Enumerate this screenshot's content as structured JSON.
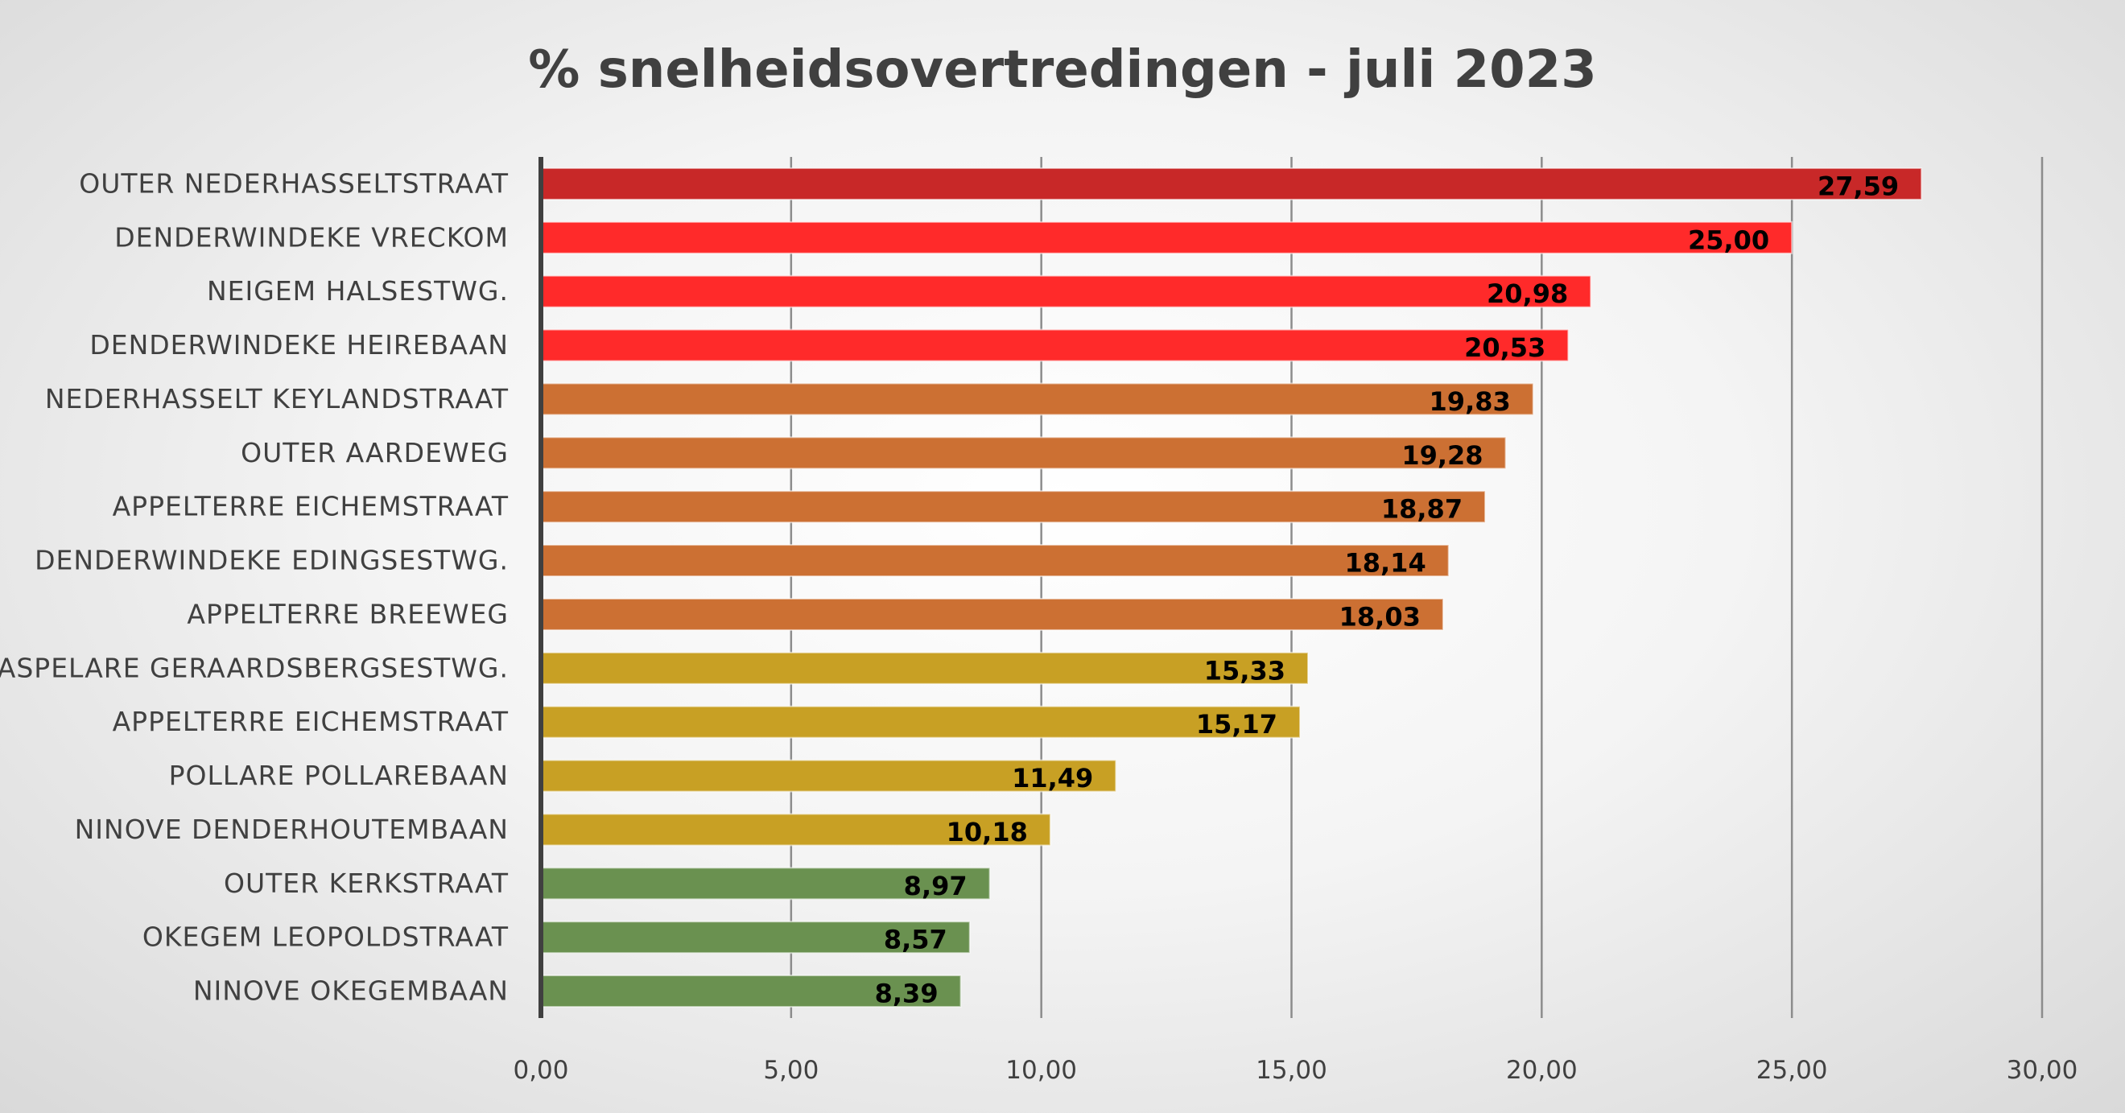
{
  "chart_data": {
    "type": "bar",
    "orientation": "horizontal",
    "title": "% snelheidsovertredingen - juli 2023",
    "xlabel": "",
    "ylabel": "",
    "xlim": [
      0,
      30
    ],
    "x_ticks": [
      "0,00",
      "5,00",
      "10,00",
      "15,00",
      "20,00",
      "25,00",
      "30,00"
    ],
    "x_tick_values": [
      0,
      5,
      10,
      15,
      20,
      25,
      30
    ],
    "grid": true,
    "legend": "none",
    "categories": [
      "OUTER NEDERHASSELTSTRAAT",
      "DENDERWINDEKE VRECKOM",
      "NEIGEM HALSESTWG.",
      "DENDERWINDEKE HEIREBAAN",
      "NEDERHASSELT KEYLANDSTRAAT",
      "OUTER AARDEWEG",
      "APPELTERRE EICHEMSTRAAT",
      "DENDERWINDEKE EDINGSESTWG.",
      "APPELTERRE BREEWEG",
      "ASPELARE GERAARDSBERGSESTWG.",
      "APPELTERRE EICHEMSTRAAT",
      "POLLARE POLLAREBAAN",
      "NINOVE DENDERHOUTEMBAAN",
      "OUTER KERKSTRAAT",
      "OKEGEM LEOPOLDSTRAAT",
      "NINOVE OKEGEMBAAN"
    ],
    "values": [
      27.59,
      25.0,
      20.98,
      20.53,
      19.83,
      19.28,
      18.87,
      18.14,
      18.03,
      15.33,
      15.17,
      11.49,
      10.18,
      8.97,
      8.57,
      8.39
    ],
    "value_labels": [
      "27,59",
      "25,00",
      "20,98",
      "20,53",
      "19,83",
      "19,28",
      "18,87",
      "18,14",
      "18,03",
      "15,33",
      "15,17",
      "11,49",
      "10,18",
      "8,97",
      "8,57",
      "8,39"
    ],
    "bar_colors": [
      "#c82828",
      "#ff2a2a",
      "#ff2a2a",
      "#ff2a2a",
      "#cc7033",
      "#cc7033",
      "#cc7033",
      "#cc7033",
      "#cc7033",
      "#c8a024",
      "#c8a024",
      "#c8a024",
      "#c8a024",
      "#6a9150",
      "#6a9150",
      "#6a9150"
    ]
  }
}
